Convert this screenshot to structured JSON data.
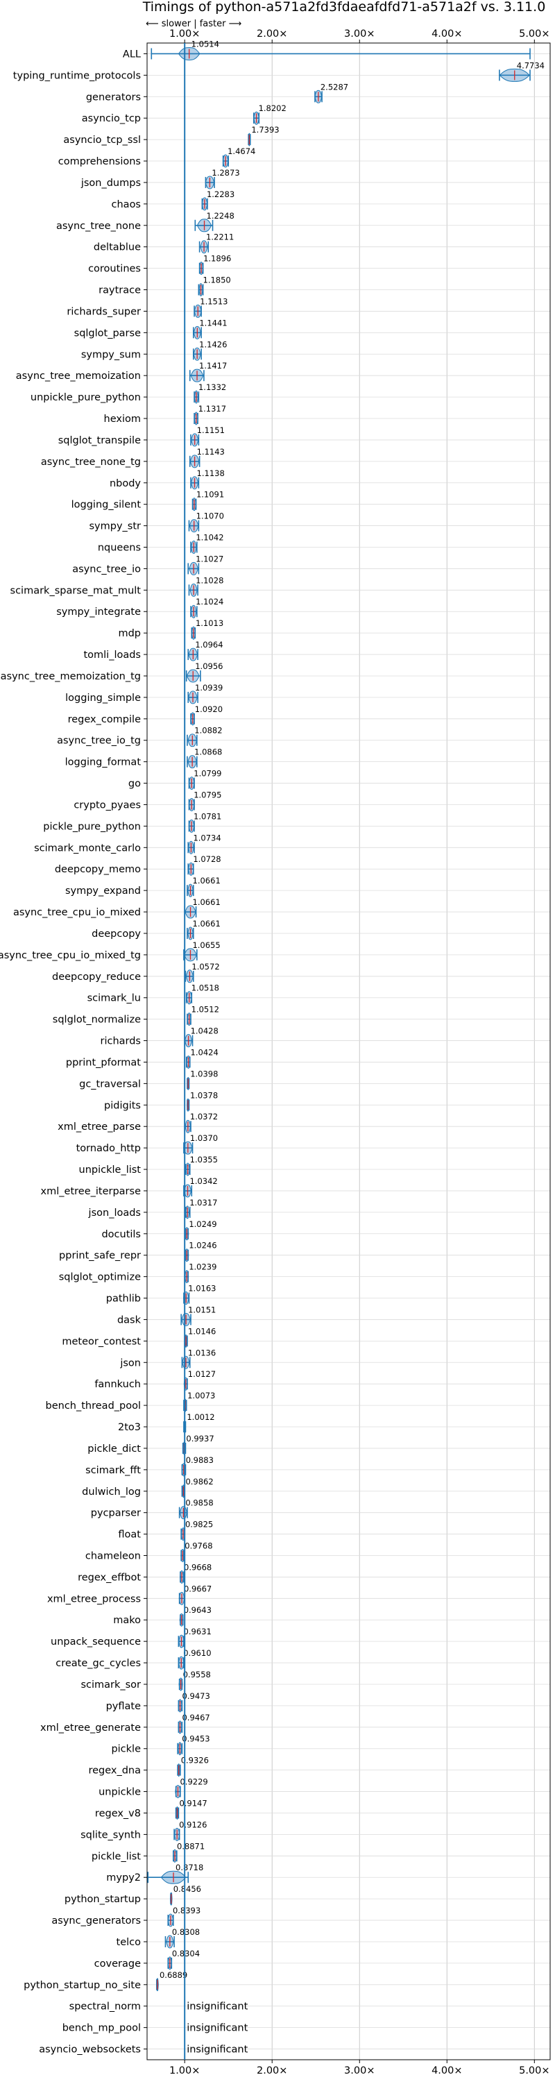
{
  "chart_data": {
    "type": "violin",
    "title": "Timings of python-a571a2fd3fdaeafdfd71-a571a2f vs. 3.11.0",
    "subtitle": "⟵ slower | faster ⟶",
    "xlabel": "",
    "ylabel": "",
    "x_ticks": [
      "1.00×",
      "2.00×",
      "3.00×",
      "4.00×",
      "5.00×"
    ],
    "x_tick_values": [
      1,
      2,
      3,
      4,
      5
    ],
    "xlim": [
      0.57,
      5.18
    ],
    "grid": true,
    "reference_line": 1.0,
    "colors": {
      "body": "#1f77b4",
      "fill": "#a6c8e4",
      "median": "#d62728",
      "ref": "#1f77b4"
    },
    "insignificant_label": "insignificant",
    "benchmarks": [
      {
        "name": "ALL",
        "value": 1.0514,
        "label": "1.0514",
        "spread": 0.12,
        "whisker": [
          0.62,
          4.95
        ]
      },
      {
        "name": "typing_runtime_protocols",
        "value": 4.7734,
        "label": "4.7734",
        "spread": 0.17,
        "whisker": [
          4.6,
          4.95
        ]
      },
      {
        "name": "generators",
        "value": 2.5287,
        "label": "2.5287",
        "spread": 0.04,
        "whisker": [
          2.49,
          2.57
        ]
      },
      {
        "name": "asyncio_tcp",
        "value": 1.8202,
        "label": "1.8202",
        "spread": 0.03,
        "whisker": [
          1.79,
          1.85
        ]
      },
      {
        "name": "asyncio_tcp_ssl",
        "value": 1.7393,
        "label": "1.7393",
        "spread": 0.01,
        "whisker": [
          1.73,
          1.75
        ]
      },
      {
        "name": "comprehensions",
        "value": 1.4674,
        "label": "1.4674",
        "spread": 0.03,
        "whisker": [
          1.44,
          1.5
        ]
      },
      {
        "name": "json_dumps",
        "value": 1.2873,
        "label": "1.2873",
        "spread": 0.05,
        "whisker": [
          1.24,
          1.34
        ]
      },
      {
        "name": "chaos",
        "value": 1.2283,
        "label": "1.2283",
        "spread": 0.03,
        "whisker": [
          1.2,
          1.26
        ]
      },
      {
        "name": "async_tree_none",
        "value": 1.2248,
        "label": "1.2248",
        "spread": 0.08,
        "whisker": [
          1.12,
          1.32
        ]
      },
      {
        "name": "deltablue",
        "value": 1.2211,
        "label": "1.2211",
        "spread": 0.04,
        "whisker": [
          1.17,
          1.27
        ]
      },
      {
        "name": "coroutines",
        "value": 1.1896,
        "label": "1.1896",
        "spread": 0.02,
        "whisker": [
          1.17,
          1.21
        ]
      },
      {
        "name": "raytrace",
        "value": 1.185,
        "label": "1.1850",
        "spread": 0.02,
        "whisker": [
          1.16,
          1.21
        ]
      },
      {
        "name": "richards_super",
        "value": 1.1513,
        "label": "1.1513",
        "spread": 0.04,
        "whisker": [
          1.11,
          1.19
        ]
      },
      {
        "name": "sqlglot_parse",
        "value": 1.1441,
        "label": "1.1441",
        "spread": 0.04,
        "whisker": [
          1.1,
          1.19
        ]
      },
      {
        "name": "sympy_sum",
        "value": 1.1426,
        "label": "1.1426",
        "spread": 0.04,
        "whisker": [
          1.1,
          1.19
        ]
      },
      {
        "name": "async_tree_memoization",
        "value": 1.1417,
        "label": "1.1417",
        "spread": 0.07,
        "whisker": [
          1.06,
          1.22
        ]
      },
      {
        "name": "unpickle_pure_python",
        "value": 1.1332,
        "label": "1.1332",
        "spread": 0.02,
        "whisker": [
          1.11,
          1.16
        ]
      },
      {
        "name": "hexiom",
        "value": 1.1317,
        "label": "1.1317",
        "spread": 0.02,
        "whisker": [
          1.11,
          1.15
        ]
      },
      {
        "name": "sqlglot_transpile",
        "value": 1.1151,
        "label": "1.1151",
        "spread": 0.04,
        "whisker": [
          1.07,
          1.16
        ]
      },
      {
        "name": "async_tree_none_tg",
        "value": 1.1143,
        "label": "1.1143",
        "spread": 0.05,
        "whisker": [
          1.06,
          1.17
        ]
      },
      {
        "name": "nbody",
        "value": 1.1138,
        "label": "1.1138",
        "spread": 0.04,
        "whisker": [
          1.07,
          1.16
        ]
      },
      {
        "name": "logging_silent",
        "value": 1.1091,
        "label": "1.1091",
        "spread": 0.02,
        "whisker": [
          1.09,
          1.13
        ]
      },
      {
        "name": "sympy_str",
        "value": 1.107,
        "label": "1.1070",
        "spread": 0.05,
        "whisker": [
          1.05,
          1.16
        ]
      },
      {
        "name": "nqueens",
        "value": 1.1042,
        "label": "1.1042",
        "spread": 0.03,
        "whisker": [
          1.07,
          1.14
        ]
      },
      {
        "name": "async_tree_io",
        "value": 1.1027,
        "label": "1.1027",
        "spread": 0.05,
        "whisker": [
          1.04,
          1.16
        ]
      },
      {
        "name": "scimark_sparse_mat_mult",
        "value": 1.1028,
        "label": "1.1028",
        "spread": 0.04,
        "whisker": [
          1.05,
          1.15
        ]
      },
      {
        "name": "sympy_integrate",
        "value": 1.1024,
        "label": "1.1024",
        "spread": 0.03,
        "whisker": [
          1.07,
          1.14
        ]
      },
      {
        "name": "mdp",
        "value": 1.1013,
        "label": "1.1013",
        "spread": 0.02,
        "whisker": [
          1.08,
          1.12
        ]
      },
      {
        "name": "tomli_loads",
        "value": 1.0964,
        "label": "1.0964",
        "spread": 0.05,
        "whisker": [
          1.04,
          1.15
        ]
      },
      {
        "name": "async_tree_memoization_tg",
        "value": 1.0956,
        "label": "1.0956",
        "spread": 0.07,
        "whisker": [
          1.02,
          1.18
        ]
      },
      {
        "name": "logging_simple",
        "value": 1.0939,
        "label": "1.0939",
        "spread": 0.05,
        "whisker": [
          1.04,
          1.15
        ]
      },
      {
        "name": "regex_compile",
        "value": 1.092,
        "label": "1.0920",
        "spread": 0.02,
        "whisker": [
          1.07,
          1.11
        ]
      },
      {
        "name": "async_tree_io_tg",
        "value": 1.0882,
        "label": "1.0882",
        "spread": 0.05,
        "whisker": [
          1.03,
          1.14
        ]
      },
      {
        "name": "logging_format",
        "value": 1.0868,
        "label": "1.0868",
        "spread": 0.05,
        "whisker": [
          1.03,
          1.14
        ]
      },
      {
        "name": "go",
        "value": 1.0799,
        "label": "1.0799",
        "spread": 0.03,
        "whisker": [
          1.05,
          1.11
        ]
      },
      {
        "name": "crypto_pyaes",
        "value": 1.0795,
        "label": "1.0795",
        "spread": 0.03,
        "whisker": [
          1.05,
          1.11
        ]
      },
      {
        "name": "pickle_pure_python",
        "value": 1.0781,
        "label": "1.0781",
        "spread": 0.03,
        "whisker": [
          1.05,
          1.11
        ]
      },
      {
        "name": "scimark_monte_carlo",
        "value": 1.0734,
        "label": "1.0734",
        "spread": 0.03,
        "whisker": [
          1.04,
          1.11
        ]
      },
      {
        "name": "deepcopy_memo",
        "value": 1.0728,
        "label": "1.0728",
        "spread": 0.03,
        "whisker": [
          1.04,
          1.1
        ]
      },
      {
        "name": "sympy_expand",
        "value": 1.0661,
        "label": "1.0661",
        "spread": 0.03,
        "whisker": [
          1.03,
          1.1
        ]
      },
      {
        "name": "async_tree_cpu_io_mixed",
        "value": 1.0661,
        "label": "1.0661",
        "spread": 0.06,
        "whisker": [
          1.0,
          1.13
        ]
      },
      {
        "name": "deepcopy",
        "value": 1.0661,
        "label": "1.0661",
        "spread": 0.03,
        "whisker": [
          1.03,
          1.1
        ]
      },
      {
        "name": "async_tree_cpu_io_mixed_tg",
        "value": 1.0655,
        "label": "1.0655",
        "spread": 0.07,
        "whisker": [
          0.99,
          1.14
        ]
      },
      {
        "name": "deepcopy_reduce",
        "value": 1.0572,
        "label": "1.0572",
        "spread": 0.04,
        "whisker": [
          1.01,
          1.1
        ]
      },
      {
        "name": "scimark_lu",
        "value": 1.0518,
        "label": "1.0518",
        "spread": 0.03,
        "whisker": [
          1.02,
          1.08
        ]
      },
      {
        "name": "sqlglot_normalize",
        "value": 1.0512,
        "label": "1.0512",
        "spread": 0.02,
        "whisker": [
          1.03,
          1.07
        ]
      },
      {
        "name": "richards",
        "value": 1.0428,
        "label": "1.0428",
        "spread": 0.04,
        "whisker": [
          1.0,
          1.09
        ]
      },
      {
        "name": "pprint_pformat",
        "value": 1.0424,
        "label": "1.0424",
        "spread": 0.02,
        "whisker": [
          1.02,
          1.06
        ]
      },
      {
        "name": "gc_traversal",
        "value": 1.0398,
        "label": "1.0398",
        "spread": 0.01,
        "whisker": [
          1.03,
          1.05
        ]
      },
      {
        "name": "pidigits",
        "value": 1.0378,
        "label": "1.0378",
        "spread": 0.01,
        "whisker": [
          1.03,
          1.05
        ]
      },
      {
        "name": "xml_etree_parse",
        "value": 1.0372,
        "label": "1.0372",
        "spread": 0.03,
        "whisker": [
          1.0,
          1.07
        ]
      },
      {
        "name": "tornado_http",
        "value": 1.037,
        "label": "1.0370",
        "spread": 0.05,
        "whisker": [
          0.99,
          1.09
        ]
      },
      {
        "name": "unpickle_list",
        "value": 1.0355,
        "label": "1.0355",
        "spread": 0.02,
        "whisker": [
          1.01,
          1.06
        ]
      },
      {
        "name": "xml_etree_iterparse",
        "value": 1.0342,
        "label": "1.0342",
        "spread": 0.04,
        "whisker": [
          0.99,
          1.08
        ]
      },
      {
        "name": "json_loads",
        "value": 1.0317,
        "label": "1.0317",
        "spread": 0.02,
        "whisker": [
          1.01,
          1.06
        ]
      },
      {
        "name": "docutils",
        "value": 1.0249,
        "label": "1.0249",
        "spread": 0.02,
        "whisker": [
          1.01,
          1.04
        ]
      },
      {
        "name": "pprint_safe_repr",
        "value": 1.0246,
        "label": "1.0246",
        "spread": 0.02,
        "whisker": [
          1.01,
          1.04
        ]
      },
      {
        "name": "sqlglot_optimize",
        "value": 1.0239,
        "label": "1.0239",
        "spread": 0.02,
        "whisker": [
          1.0,
          1.04
        ]
      },
      {
        "name": "pathlib",
        "value": 1.0163,
        "label": "1.0163",
        "spread": 0.03,
        "whisker": [
          0.99,
          1.05
        ]
      },
      {
        "name": "dask",
        "value": 1.0151,
        "label": "1.0151",
        "spread": 0.05,
        "whisker": [
          0.96,
          1.07
        ]
      },
      {
        "name": "meteor_contest",
        "value": 1.0146,
        "label": "1.0146",
        "spread": 0.01,
        "whisker": [
          1.0,
          1.03
        ]
      },
      {
        "name": "json",
        "value": 1.0136,
        "label": "1.0136",
        "spread": 0.04,
        "whisker": [
          0.97,
          1.06
        ]
      },
      {
        "name": "fannkuch",
        "value": 1.0127,
        "label": "1.0127",
        "spread": 0.02,
        "whisker": [
          1.0,
          1.03
        ]
      },
      {
        "name": "bench_thread_pool",
        "value": 1.0073,
        "label": "1.0073",
        "spread": 0.01,
        "whisker": [
          0.99,
          1.02
        ]
      },
      {
        "name": "2to3",
        "value": 1.0012,
        "label": "1.0012",
        "spread": 0.01,
        "whisker": [
          0.99,
          1.01
        ]
      },
      {
        "name": "pickle_dict",
        "value": 0.9937,
        "label": "0.9937",
        "spread": 0.01,
        "whisker": [
          0.98,
          1.01
        ]
      },
      {
        "name": "scimark_fft",
        "value": 0.9883,
        "label": "0.9883",
        "spread": 0.02,
        "whisker": [
          0.97,
          1.01
        ]
      },
      {
        "name": "dulwich_log",
        "value": 0.9862,
        "label": "0.9862",
        "spread": 0.01,
        "whisker": [
          0.97,
          1.0
        ]
      },
      {
        "name": "pycparser",
        "value": 0.9858,
        "label": "0.9858",
        "spread": 0.04,
        "whisker": [
          0.94,
          1.03
        ]
      },
      {
        "name": "float",
        "value": 0.9825,
        "label": "0.9825",
        "spread": 0.02,
        "whisker": [
          0.96,
          1.0
        ]
      },
      {
        "name": "chameleon",
        "value": 0.9768,
        "label": "0.9768",
        "spread": 0.02,
        "whisker": [
          0.96,
          0.99
        ]
      },
      {
        "name": "regex_effbot",
        "value": 0.9668,
        "label": "0.9668",
        "spread": 0.02,
        "whisker": [
          0.95,
          0.99
        ]
      },
      {
        "name": "xml_etree_process",
        "value": 0.9667,
        "label": "0.9667",
        "spread": 0.03,
        "whisker": [
          0.94,
          1.0
        ]
      },
      {
        "name": "mako",
        "value": 0.9643,
        "label": "0.9643",
        "spread": 0.02,
        "whisker": [
          0.95,
          0.98
        ]
      },
      {
        "name": "unpack_sequence",
        "value": 0.9631,
        "label": "0.9631",
        "spread": 0.03,
        "whisker": [
          0.93,
          0.99
        ]
      },
      {
        "name": "create_gc_cycles",
        "value": 0.961,
        "label": "0.9610",
        "spread": 0.03,
        "whisker": [
          0.93,
          0.99
        ]
      },
      {
        "name": "scimark_sor",
        "value": 0.9558,
        "label": "0.9558",
        "spread": 0.02,
        "whisker": [
          0.94,
          0.97
        ]
      },
      {
        "name": "pyflate",
        "value": 0.9473,
        "label": "0.9473",
        "spread": 0.02,
        "whisker": [
          0.93,
          0.97
        ]
      },
      {
        "name": "xml_etree_generate",
        "value": 0.9467,
        "label": "0.9467",
        "spread": 0.02,
        "whisker": [
          0.93,
          0.97
        ]
      },
      {
        "name": "pickle",
        "value": 0.9453,
        "label": "0.9453",
        "spread": 0.02,
        "whisker": [
          0.92,
          0.97
        ]
      },
      {
        "name": "regex_dna",
        "value": 0.9326,
        "label": "0.9326",
        "spread": 0.01,
        "whisker": [
          0.92,
          0.95
        ]
      },
      {
        "name": "unpickle",
        "value": 0.9229,
        "label": "0.9229",
        "spread": 0.03,
        "whisker": [
          0.9,
          0.95
        ]
      },
      {
        "name": "regex_v8",
        "value": 0.9147,
        "label": "0.9147",
        "spread": 0.01,
        "whisker": [
          0.9,
          0.93
        ]
      },
      {
        "name": "sqlite_synth",
        "value": 0.9126,
        "label": "0.9126",
        "spread": 0.03,
        "whisker": [
          0.88,
          0.94
        ]
      },
      {
        "name": "pickle_list",
        "value": 0.8871,
        "label": "0.8871",
        "spread": 0.02,
        "whisker": [
          0.87,
          0.91
        ]
      },
      {
        "name": "mypy2",
        "value": 0.8718,
        "label": "0.8718",
        "spread": 0.14,
        "whisker": [
          0.58,
          1.04
        ]
      },
      {
        "name": "python_startup",
        "value": 0.8456,
        "label": "0.8456",
        "spread": 0.01,
        "whisker": [
          0.84,
          0.85
        ]
      },
      {
        "name": "async_generators",
        "value": 0.8393,
        "label": "0.8393",
        "spread": 0.03,
        "whisker": [
          0.81,
          0.87
        ]
      },
      {
        "name": "telco",
        "value": 0.8308,
        "label": "0.8308",
        "spread": 0.04,
        "whisker": [
          0.78,
          0.88
        ]
      },
      {
        "name": "coverage",
        "value": 0.8304,
        "label": "0.8304",
        "spread": 0.02,
        "whisker": [
          0.81,
          0.85
        ]
      },
      {
        "name": "python_startup_no_site",
        "value": 0.6889,
        "label": "0.6889",
        "spread": 0.01,
        "whisker": [
          0.68,
          0.69
        ]
      },
      {
        "name": "spectral_norm",
        "value": null,
        "label": "insignificant"
      },
      {
        "name": "bench_mp_pool",
        "value": null,
        "label": "insignificant"
      },
      {
        "name": "asyncio_websockets",
        "value": null,
        "label": "insignificant"
      }
    ]
  }
}
